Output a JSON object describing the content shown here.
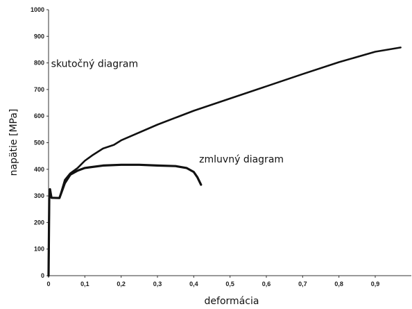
{
  "chart_data": {
    "type": "line",
    "xlabel": "deformácia",
    "ylabel": "napätie [MPa]",
    "xlim": [
      0,
      1.0
    ],
    "ylim": [
      0,
      1000
    ],
    "x_ticks": [
      {
        "value": 0,
        "label": "0"
      },
      {
        "value": 0.1,
        "label": "0,1"
      },
      {
        "value": 0.2,
        "label": "0,2"
      },
      {
        "value": 0.3,
        "label": "0,3"
      },
      {
        "value": 0.4,
        "label": "0,4"
      },
      {
        "value": 0.5,
        "label": "0,5"
      },
      {
        "value": 0.6,
        "label": "0,6"
      },
      {
        "value": 0.7,
        "label": "0,7"
      },
      {
        "value": 0.8,
        "label": "0,8"
      },
      {
        "value": 0.9,
        "label": "0,9"
      }
    ],
    "y_ticks": [
      {
        "value": 0,
        "label": "0"
      },
      {
        "value": 100,
        "label": "100"
      },
      {
        "value": 200,
        "label": "200"
      },
      {
        "value": 300,
        "label": "300"
      },
      {
        "value": 400,
        "label": "400"
      },
      {
        "value": 500,
        "label": "500"
      },
      {
        "value": 600,
        "label": "600"
      },
      {
        "value": 700,
        "label": "700"
      },
      {
        "value": 800,
        "label": "800"
      },
      {
        "value": 900,
        "label": "900"
      },
      {
        "value": 1000,
        "label": "1000"
      }
    ],
    "grid": false,
    "series": [
      {
        "label": "skutočný diagram",
        "label_at": {
          "x": 0.007,
          "y": 785
        },
        "color": "#111111",
        "points": [
          [
            0,
            0
          ],
          [
            0.002,
            290
          ],
          [
            0.004,
            325
          ],
          [
            0.008,
            293
          ],
          [
            0.03,
            292
          ],
          [
            0.045,
            360
          ],
          [
            0.06,
            385
          ],
          [
            0.08,
            405
          ],
          [
            0.1,
            432
          ],
          [
            0.12,
            452
          ],
          [
            0.15,
            478
          ],
          [
            0.18,
            492
          ],
          [
            0.2,
            509
          ],
          [
            0.3,
            568
          ],
          [
            0.4,
            620
          ],
          [
            0.5,
            666
          ],
          [
            0.6,
            712
          ],
          [
            0.7,
            758
          ],
          [
            0.8,
            803
          ],
          [
            0.9,
            842
          ],
          [
            0.97,
            858
          ]
        ]
      },
      {
        "label": "zmluvný diagram",
        "label_at": {
          "x": 0.415,
          "y": 425
        },
        "color": "#111111",
        "points": [
          [
            0,
            0
          ],
          [
            0.002,
            290
          ],
          [
            0.004,
            325
          ],
          [
            0.008,
            293
          ],
          [
            0.03,
            292
          ],
          [
            0.045,
            348
          ],
          [
            0.06,
            380
          ],
          [
            0.08,
            395
          ],
          [
            0.1,
            405
          ],
          [
            0.15,
            414
          ],
          [
            0.2,
            417
          ],
          [
            0.25,
            417
          ],
          [
            0.3,
            414
          ],
          [
            0.35,
            412
          ],
          [
            0.38,
            405
          ],
          [
            0.4,
            390
          ],
          [
            0.41,
            370
          ],
          [
            0.42,
            342
          ]
        ]
      }
    ]
  }
}
